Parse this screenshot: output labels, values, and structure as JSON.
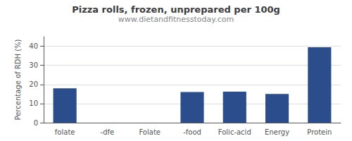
{
  "chart_data": {
    "type": "bar",
    "title": "Pizza rolls, frozen, unprepared per 100g",
    "subtitle": "www.dietandfitnesstoday.com",
    "categories": [
      "folate",
      "-dfe",
      "Folate",
      "-food",
      "Folic-acid",
      "Energy",
      "Protein"
    ],
    "values": [
      18,
      0,
      0,
      16,
      16.2,
      15,
      39.5
    ],
    "color": "#2b4d8c",
    "ylabel": "Percentage of RDH (%)",
    "ylim": [
      0,
      45
    ],
    "yticks": [
      0,
      10,
      20,
      30,
      40
    ],
    "grid": true
  }
}
